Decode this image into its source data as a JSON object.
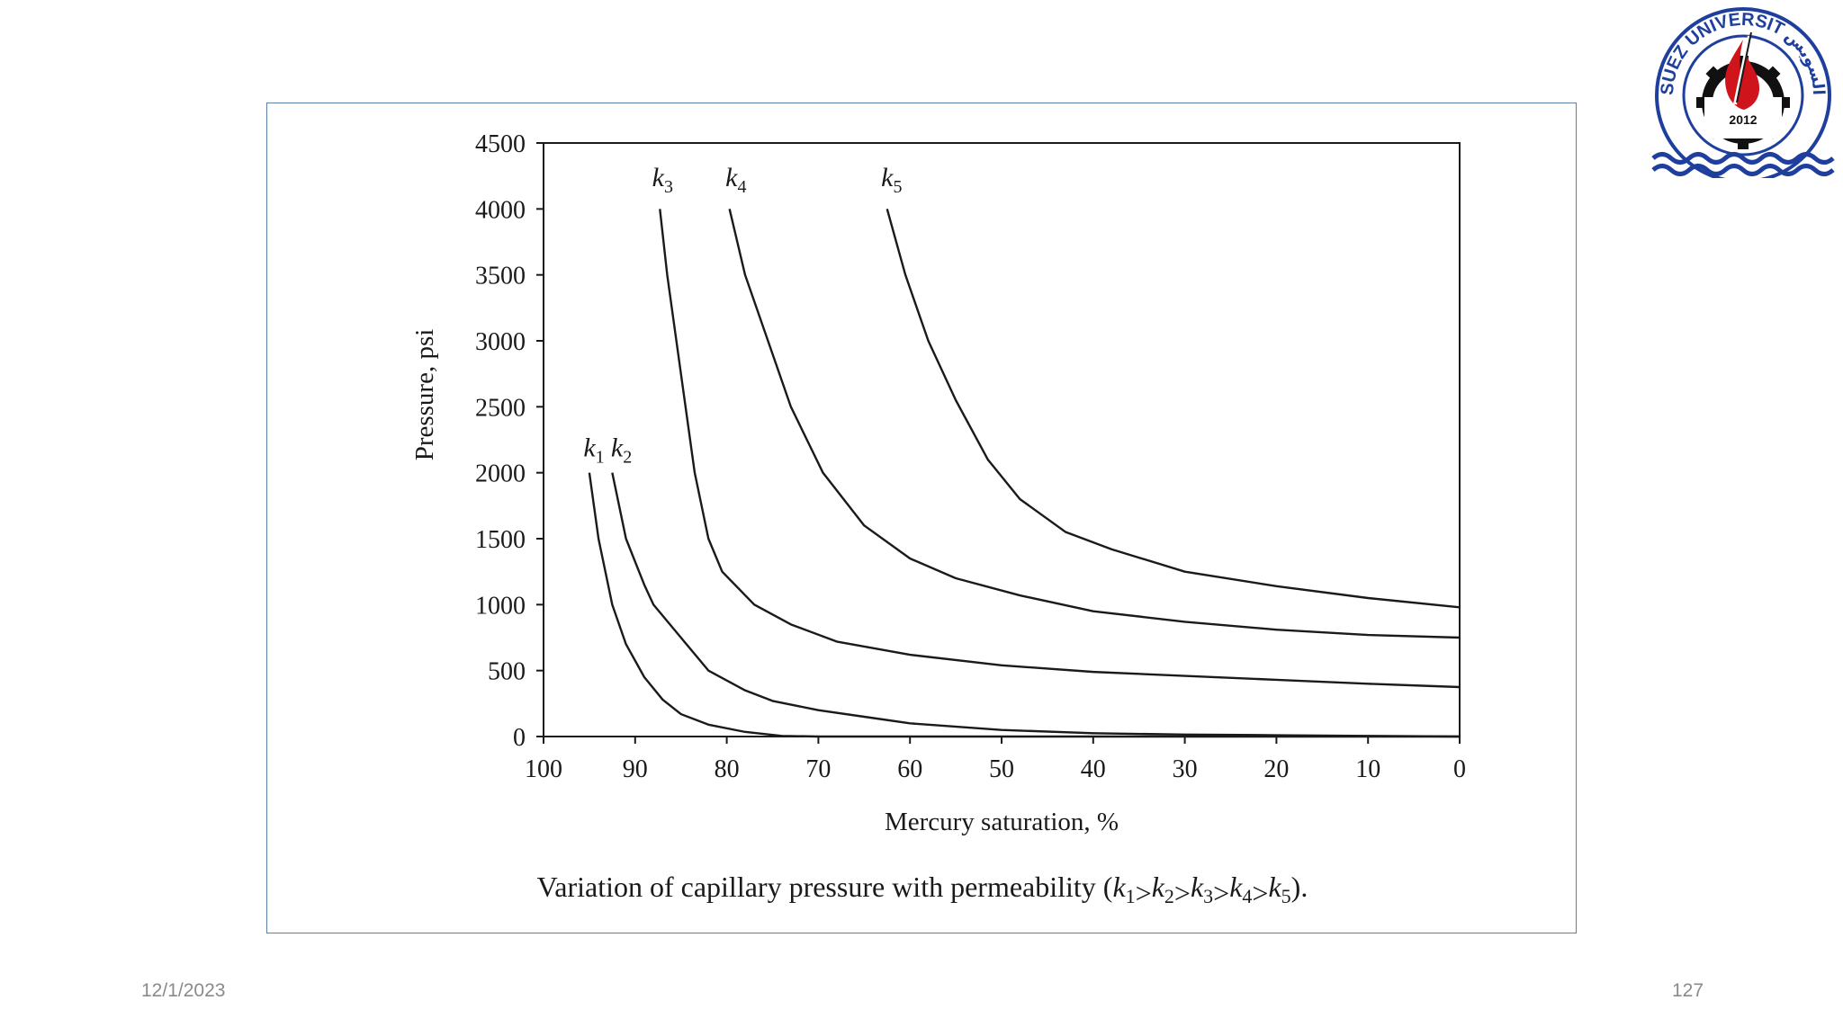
{
  "footer": {
    "date": "12/1/2023",
    "page_number": "127"
  },
  "logo": {
    "text_top": "SUEZ UNIVERSITY",
    "text_arabic": "جامعة السويس",
    "year": "2012",
    "colors": {
      "ring": "#1f3f9e",
      "flame": "#d0141c",
      "gear": "#111111",
      "waves": "#1f3f9e"
    }
  },
  "chart_data": {
    "type": "line",
    "xlabel": "Mercury saturation, %",
    "ylabel": "Pressure, psi",
    "caption": {
      "prefix": "Variation of capillary pressure with permeability (",
      "items": [
        {
          "letter": "k",
          "sub": "1"
        },
        {
          "letter": "k",
          "sub": "2"
        },
        {
          "letter": "k",
          "sub": "3"
        },
        {
          "letter": "k",
          "sub": "4"
        },
        {
          "letter": "k",
          "sub": "5"
        }
      ],
      "separator": ">",
      "suffix": ")."
    },
    "xlim": [
      100,
      0
    ],
    "ylim": [
      0,
      4500
    ],
    "x_reversed": true,
    "xticks": [
      100,
      90,
      80,
      70,
      60,
      50,
      40,
      30,
      20,
      10,
      0
    ],
    "yticks": [
      0,
      500,
      1000,
      1500,
      2000,
      2500,
      3000,
      3500,
      4000,
      4500
    ],
    "grid": false,
    "line_color": "#1a1a1a",
    "series": [
      {
        "label_letter": "k",
        "label_sub": "1",
        "label_at": [
          94.5,
          2000
        ],
        "points": [
          [
            95,
            2000
          ],
          [
            94,
            1500
          ],
          [
            92.5,
            1000
          ],
          [
            91,
            700
          ],
          [
            89,
            450
          ],
          [
            87,
            280
          ],
          [
            85,
            170
          ],
          [
            82,
            90
          ],
          [
            78,
            35
          ],
          [
            74,
            5
          ],
          [
            70,
            0
          ],
          [
            60,
            0
          ],
          [
            50,
            0
          ],
          [
            40,
            0
          ],
          [
            30,
            0
          ],
          [
            20,
            0
          ],
          [
            10,
            0
          ],
          [
            0,
            0
          ]
        ]
      },
      {
        "label_letter": "k",
        "label_sub": "2",
        "label_at": [
          91.5,
          2000
        ],
        "points": [
          [
            92.5,
            2000
          ],
          [
            91,
            1500
          ],
          [
            89,
            1150
          ],
          [
            88,
            1000
          ],
          [
            85,
            750
          ],
          [
            82,
            500
          ],
          [
            78,
            350
          ],
          [
            75,
            270
          ],
          [
            70,
            200
          ],
          [
            65,
            150
          ],
          [
            60,
            100
          ],
          [
            50,
            50
          ],
          [
            40,
            25
          ],
          [
            30,
            15
          ],
          [
            20,
            10
          ],
          [
            10,
            5
          ],
          [
            0,
            0
          ]
        ]
      },
      {
        "label_letter": "k",
        "label_sub": "3",
        "label_at": [
          87,
          4050
        ],
        "points": [
          [
            87.3,
            4000
          ],
          [
            86.5,
            3500
          ],
          [
            85.5,
            3000
          ],
          [
            84.5,
            2500
          ],
          [
            83.5,
            2000
          ],
          [
            82,
            1500
          ],
          [
            80.5,
            1250
          ],
          [
            77,
            1000
          ],
          [
            73,
            850
          ],
          [
            68,
            720
          ],
          [
            60,
            620
          ],
          [
            50,
            540
          ],
          [
            40,
            490
          ],
          [
            30,
            460
          ],
          [
            20,
            430
          ],
          [
            10,
            400
          ],
          [
            0,
            375
          ]
        ]
      },
      {
        "label_letter": "k",
        "label_sub": "4",
        "label_at": [
          79,
          4050
        ],
        "points": [
          [
            79.7,
            4000
          ],
          [
            78,
            3500
          ],
          [
            75.5,
            3000
          ],
          [
            73,
            2500
          ],
          [
            69.5,
            2000
          ],
          [
            65,
            1600
          ],
          [
            60,
            1350
          ],
          [
            55,
            1200
          ],
          [
            48,
            1070
          ],
          [
            40,
            950
          ],
          [
            30,
            870
          ],
          [
            20,
            810
          ],
          [
            10,
            770
          ],
          [
            0,
            750
          ]
        ]
      },
      {
        "label_letter": "k",
        "label_sub": "5",
        "label_at": [
          62,
          4050
        ],
        "points": [
          [
            62.5,
            4000
          ],
          [
            60.5,
            3500
          ],
          [
            58,
            3000
          ],
          [
            55,
            2550
          ],
          [
            51.5,
            2100
          ],
          [
            48,
            1800
          ],
          [
            43,
            1550
          ],
          [
            38,
            1420
          ],
          [
            30,
            1250
          ],
          [
            20,
            1140
          ],
          [
            10,
            1050
          ],
          [
            0,
            980
          ]
        ]
      }
    ]
  }
}
